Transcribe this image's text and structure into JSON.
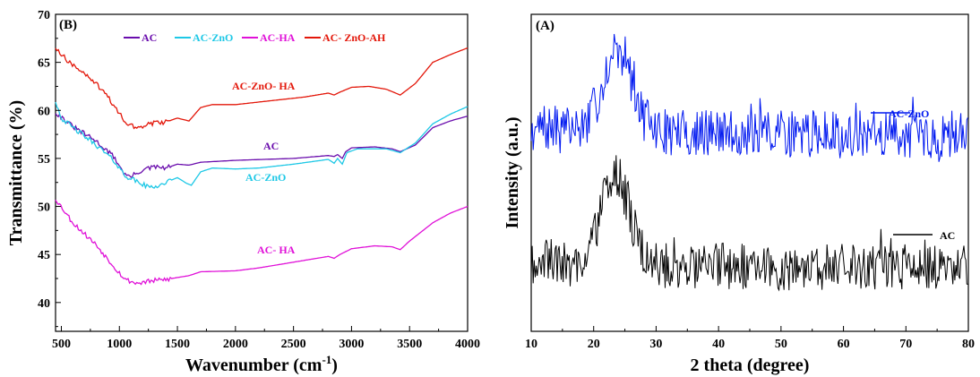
{
  "chart_data": [
    {
      "type": "line",
      "panel_label": "(B)",
      "xlabel_main": "Wavenumber (cm",
      "xlabel_sup": "-1",
      "xlabel_end": ")",
      "ylabel": "Transmittance (%)",
      "xlim": [
        450,
        4000
      ],
      "ylim": [
        37,
        70
      ],
      "xticks": [
        "500",
        "1000",
        "1500",
        "2000",
        "2500",
        "3000",
        "3500",
        "4000"
      ],
      "yticks": [
        "40",
        "45",
        "50",
        "55",
        "60",
        "65",
        "70"
      ],
      "legend": {
        "placement": "top",
        "entries": [
          "AC",
          "AC-ZnO",
          "AC-HA",
          "AC- ZnO-AH"
        ]
      },
      "series": [
        {
          "name": "AC",
          "color": "#6a0dad",
          "annotation": "AC",
          "points": [
            [
              450,
              59.8
            ],
            [
              600,
              58.3
            ],
            [
              800,
              56.8
            ],
            [
              950,
              55.2
            ],
            [
              1050,
              53.3
            ],
            [
              1100,
              53.1
            ],
            [
              1200,
              53.8
            ],
            [
              1300,
              54.1
            ],
            [
              1400,
              54.0
            ],
            [
              1500,
              54.4
            ],
            [
              1600,
              54.3
            ],
            [
              1700,
              54.6
            ],
            [
              2000,
              54.8
            ],
            [
              2500,
              55.0
            ],
            [
              2800,
              55.3
            ],
            [
              2850,
              55.2
            ],
            [
              2880,
              55.4
            ],
            [
              2920,
              55.0
            ],
            [
              2950,
              55.7
            ],
            [
              3000,
              56.1
            ],
            [
              3200,
              56.2
            ],
            [
              3350,
              56.0
            ],
            [
              3420,
              55.7
            ],
            [
              3550,
              56.4
            ],
            [
              3700,
              58.2
            ],
            [
              3850,
              58.9
            ],
            [
              4000,
              59.4
            ]
          ]
        },
        {
          "name": "AC-ZnO",
          "color": "#1ec8e6",
          "annotation": "AC-ZnO",
          "points": [
            [
              450,
              61.0
            ],
            [
              500,
              59.2
            ],
            [
              600,
              58.2
            ],
            [
              800,
              56.4
            ],
            [
              950,
              54.8
            ],
            [
              1050,
              53.2
            ],
            [
              1150,
              52.6
            ],
            [
              1250,
              52.0
            ],
            [
              1350,
              52.2
            ],
            [
              1400,
              52.5
            ],
            [
              1500,
              53.0
            ],
            [
              1580,
              52.4
            ],
            [
              1620,
              52.2
            ],
            [
              1700,
              53.6
            ],
            [
              1800,
              54.0
            ],
            [
              2000,
              53.9
            ],
            [
              2200,
              54.0
            ],
            [
              2500,
              54.4
            ],
            [
              2800,
              54.9
            ],
            [
              2850,
              54.5
            ],
            [
              2880,
              55.0
            ],
            [
              2920,
              54.4
            ],
            [
              2960,
              55.6
            ],
            [
              3050,
              56.0
            ],
            [
              3300,
              56.0
            ],
            [
              3420,
              55.6
            ],
            [
              3550,
              56.6
            ],
            [
              3700,
              58.6
            ],
            [
              3850,
              59.6
            ],
            [
              4000,
              60.4
            ]
          ]
        },
        {
          "name": "AC-HA",
          "color": "#e011d8",
          "annotation": "AC- HA",
          "points": [
            [
              450,
              50.8
            ],
            [
              600,
              48.3
            ],
            [
              800,
              46.0
            ],
            [
              950,
              43.8
            ],
            [
              1050,
              42.4
            ],
            [
              1150,
              42.0
            ],
            [
              1250,
              42.2
            ],
            [
              1400,
              42.4
            ],
            [
              1500,
              42.6
            ],
            [
              1600,
              42.8
            ],
            [
              1700,
              43.2
            ],
            [
              2000,
              43.3
            ],
            [
              2200,
              43.6
            ],
            [
              2500,
              44.2
            ],
            [
              2800,
              44.8
            ],
            [
              2850,
              44.6
            ],
            [
              2900,
              45.0
            ],
            [
              3000,
              45.6
            ],
            [
              3200,
              45.9
            ],
            [
              3350,
              45.8
            ],
            [
              3420,
              45.5
            ],
            [
              3500,
              46.4
            ],
            [
              3700,
              48.3
            ],
            [
              3850,
              49.3
            ],
            [
              4000,
              50.0
            ]
          ]
        },
        {
          "name": "AC- ZnO-AH",
          "color": "#e3170a",
          "annotation": "AC-ZnO- HA",
          "points": [
            [
              450,
              66.6
            ],
            [
              550,
              65.2
            ],
            [
              700,
              63.8
            ],
            [
              850,
              62.2
            ],
            [
              950,
              60.6
            ],
            [
              1050,
              58.8
            ],
            [
              1150,
              58.1
            ],
            [
              1250,
              58.6
            ],
            [
              1400,
              58.8
            ],
            [
              1500,
              59.2
            ],
            [
              1600,
              58.9
            ],
            [
              1700,
              60.3
            ],
            [
              1800,
              60.6
            ],
            [
              2000,
              60.6
            ],
            [
              2300,
              61.0
            ],
            [
              2600,
              61.4
            ],
            [
              2800,
              61.8
            ],
            [
              2850,
              61.6
            ],
            [
              2900,
              61.9
            ],
            [
              3000,
              62.4
            ],
            [
              3150,
              62.5
            ],
            [
              3300,
              62.2
            ],
            [
              3420,
              61.6
            ],
            [
              3550,
              62.8
            ],
            [
              3700,
              65.0
            ],
            [
              3850,
              65.8
            ],
            [
              4000,
              66.5
            ]
          ]
        }
      ]
    },
    {
      "type": "line",
      "panel_label": "(A)",
      "xlabel": "2 theta (degree)",
      "ylabel": "Intensity (a.u.)",
      "xlim": [
        10,
        80
      ],
      "ylim": [
        0,
        1
      ],
      "xticks": [
        "10",
        "20",
        "30",
        "40",
        "50",
        "60",
        "70",
        "80"
      ],
      "legend": {
        "placement": "right"
      },
      "series": [
        {
          "name": "AC-ZnO",
          "color": "#0018f0",
          "baseline": 0.62,
          "peak_center": 23.8,
          "peak_width": 3.2,
          "peak_height": 0.27,
          "noise": 0.075,
          "seed": 7
        },
        {
          "name": "AC",
          "color": "#000000",
          "baseline": 0.2,
          "peak_center": 23.5,
          "peak_width": 3.2,
          "peak_height": 0.28,
          "noise": 0.075,
          "seed": 19
        }
      ]
    }
  ]
}
